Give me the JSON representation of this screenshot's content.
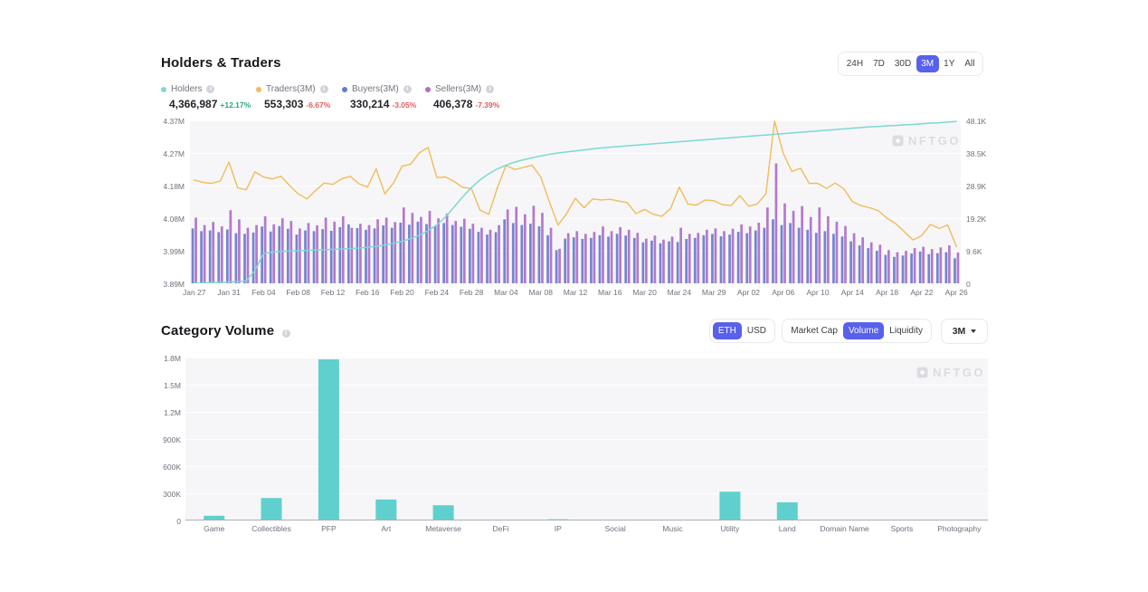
{
  "holders_traders": {
    "title": "Holders & Traders",
    "time_ranges": [
      "24H",
      "7D",
      "30D",
      "3M",
      "1Y",
      "All"
    ],
    "selected_range": "3M",
    "legend": [
      {
        "name": "Holders",
        "value": "4,366,987",
        "change": "+12.17%",
        "direction": "up",
        "color": "#7cd9d2"
      },
      {
        "name": "Traders(3M)",
        "value": "553,303",
        "change": "-6.67%",
        "direction": "down",
        "color": "#f0bc5a"
      },
      {
        "name": "Buyers(3M)",
        "value": "330,214",
        "change": "-3.05%",
        "direction": "down",
        "color": "#5c7fd0"
      },
      {
        "name": "Sellers(3M)",
        "value": "406,378",
        "change": "-7.39%",
        "direction": "down",
        "color": "#b46cc8"
      }
    ],
    "watermark": "NFTGO"
  },
  "category_volume": {
    "title": "Category Volume",
    "currency_options": [
      "ETH",
      "USD"
    ],
    "selected_currency": "ETH",
    "metric_options": [
      "Market Cap",
      "Volume",
      "Liquidity"
    ],
    "selected_metric": "Volume",
    "period": "3M",
    "watermark": "NFTGO"
  },
  "chart_data": [
    {
      "type": "composite",
      "title": "Holders & Traders",
      "x_tick_labels": [
        "Jan 27",
        "Jan 31",
        "Feb 04",
        "Feb 08",
        "Feb 12",
        "Feb 16",
        "Feb 20",
        "Feb 24",
        "Feb 28",
        "Mar 04",
        "Mar 08",
        "Mar 12",
        "Mar 16",
        "Mar 20",
        "Mar 24",
        "Mar 29",
        "Apr 02",
        "Apr 06",
        "Apr 10",
        "Apr 14",
        "Apr 18",
        "Apr 22",
        "Apr 26"
      ],
      "points_per_tick": 4,
      "left_axis": {
        "label": "Holders",
        "ticks": [
          "4.37M",
          "4.27M",
          "4.18M",
          "4.08M",
          "3.99M",
          "3.89M"
        ],
        "min": 3890000,
        "max": 4370000
      },
      "right_axis": {
        "label": "Traders/Buyers/Sellers",
        "ticks": [
          "48.1K",
          "38.5K",
          "28.9K",
          "19.2K",
          "9.6K",
          "0"
        ],
        "min": 0,
        "max": 48100
      },
      "series": [
        {
          "name": "Holders",
          "type": "line",
          "axis": "left",
          "color": "#7cd9d2",
          "values_millions": [
            3.89,
            3.891,
            3.892,
            3.893,
            3.894,
            3.895,
            3.897,
            3.928,
            3.978,
            3.982,
            3.984,
            3.985,
            3.986,
            3.987,
            3.988,
            3.989,
            3.99,
            3.991,
            3.992,
            3.994,
            3.996,
            3.999,
            4.003,
            4.008,
            4.014,
            4.022,
            4.032,
            4.045,
            4.062,
            4.085,
            4.115,
            4.145,
            4.172,
            4.195,
            4.213,
            4.227,
            4.238,
            4.247,
            4.254,
            4.26,
            4.265,
            4.27,
            4.274,
            4.277,
            4.28,
            4.283,
            4.286,
            4.289,
            4.291,
            4.293,
            4.295,
            4.297,
            4.299,
            4.301,
            4.303,
            4.305,
            4.307,
            4.309,
            4.311,
            4.313,
            4.315,
            4.317,
            4.319,
            4.321,
            4.323,
            4.325,
            4.327,
            4.329,
            4.331,
            4.333,
            4.335,
            4.337,
            4.339,
            4.341,
            4.343,
            4.345,
            4.347,
            4.349,
            4.351,
            4.352,
            4.354,
            4.355,
            4.357,
            4.358,
            4.36,
            4.362,
            4.363,
            4.365,
            4.367
          ]
        },
        {
          "name": "Traders(3M)",
          "type": "line",
          "axis": "right",
          "color": "#f0bc5a",
          "values_thousands": [
            30.5,
            29.8,
            29.5,
            30.2,
            35.8,
            28.2,
            27.6,
            32.9,
            31.4,
            30.8,
            31.6,
            28.9,
            26.4,
            24.9,
            27.4,
            29.6,
            29.2,
            30.8,
            31.6,
            29.4,
            28.4,
            33.8,
            26.4,
            29.6,
            34.6,
            35.2,
            38.6,
            40.1,
            31.2,
            31.4,
            30.1,
            28.3,
            28.0,
            21.6,
            20.4,
            28.2,
            34.8,
            33.6,
            34.2,
            34.9,
            31.4,
            24.1,
            17.2,
            20.6,
            25.1,
            22.3,
            24.9,
            24.6,
            24.8,
            24.3,
            23.8,
            20.6,
            21.8,
            20.4,
            19.8,
            22.1,
            28.4,
            23.4,
            23.1,
            24.6,
            24.4,
            23.2,
            23.0,
            25.9,
            22.8,
            23.4,
            26.4,
            47.9,
            38.4,
            33.0,
            34.0,
            29.5,
            29.5,
            28.0,
            29.6,
            27.9,
            24.1,
            22.9,
            22.3,
            21.4,
            19.2,
            17.6,
            15.2,
            12.8,
            14.1,
            17.4,
            16.2,
            17.2,
            10.9
          ]
        },
        {
          "name": "Buyers(3M)",
          "type": "bar",
          "axis": "right",
          "color": "#7285cf",
          "values_thousands": [
            16.2,
            15.4,
            15.6,
            15.1,
            15.9,
            14.8,
            14.6,
            15.0,
            16.8,
            15.3,
            16.9,
            16.1,
            14.4,
            15.6,
            15.4,
            16.0,
            15.5,
            16.6,
            17.4,
            16.3,
            15.8,
            16.2,
            17.1,
            16.4,
            17.9,
            17.3,
            18.2,
            17.5,
            17.0,
            17.8,
            17.2,
            16.7,
            16.1,
            15.2,
            14.4,
            15.1,
            18.9,
            17.8,
            17.2,
            17.6,
            16.8,
            14.2,
            9.8,
            13.2,
            13.6,
            13.1,
            13.4,
            14.2,
            13.8,
            14.6,
            14.1,
            13.4,
            12.1,
            12.6,
            11.8,
            12.4,
            12.2,
            13.1,
            13.4,
            14.2,
            14.6,
            13.9,
            14.4,
            15.2,
            14.8,
            15.6,
            16.4,
            18.9,
            17.2,
            17.8,
            16.4,
            15.8,
            14.9,
            15.4,
            14.6,
            13.8,
            12.4,
            11.2,
            10.4,
            9.6,
            8.4,
            7.8,
            8.2,
            8.8,
            9.4,
            8.6,
            8.9,
            9.2,
            7.4
          ]
        },
        {
          "name": "Sellers(3M)",
          "type": "bar",
          "axis": "right",
          "color": "#b478cc",
          "values_thousands": [
            19.4,
            17.2,
            18.1,
            16.8,
            21.6,
            18.9,
            16.4,
            17.2,
            19.8,
            17.4,
            19.2,
            18.4,
            16.2,
            17.8,
            17.1,
            19.4,
            18.2,
            19.8,
            16.4,
            17.6,
            17.2,
            18.9,
            19.4,
            18.1,
            22.4,
            20.8,
            19.6,
            21.4,
            19.2,
            20.6,
            18.4,
            19.1,
            17.6,
            16.4,
            15.8,
            17.2,
            21.8,
            22.6,
            20.4,
            22.9,
            20.8,
            16.4,
            10.2,
            14.8,
            15.4,
            14.6,
            15.2,
            16.8,
            15.4,
            16.6,
            15.8,
            14.9,
            13.2,
            14.1,
            12.9,
            13.8,
            16.4,
            14.6,
            14.9,
            15.8,
            16.2,
            15.4,
            16.1,
            17.4,
            16.8,
            17.9,
            22.4,
            35.4,
            23.6,
            21.4,
            22.8,
            19.6,
            22.4,
            19.8,
            18.2,
            16.9,
            14.8,
            13.6,
            12.1,
            11.4,
            9.8,
            9.2,
            9.6,
            10.4,
            10.8,
            10.1,
            10.6,
            11.2,
            9.1
          ]
        }
      ]
    },
    {
      "type": "bar",
      "title": "Category Volume",
      "categories": [
        "Game",
        "Collectibles",
        "PFP",
        "Art",
        "Metaverse",
        "DeFi",
        "IP",
        "Social",
        "Music",
        "Utility",
        "Land",
        "Domain Name",
        "Sports",
        "Photography"
      ],
      "values": [
        52000,
        248000,
        1780000,
        232000,
        168000,
        3000,
        14000,
        2000,
        1500,
        318000,
        201000,
        7000,
        2500,
        3500
      ],
      "yticks": [
        "1.8M",
        "1.5M",
        "1.2M",
        "900K",
        "600K",
        "300K",
        "0"
      ],
      "ylim": [
        0,
        1800000
      ],
      "color": "#5fd0cd"
    }
  ],
  "colors": {
    "accent": "#5761ec",
    "positive": "#27a583",
    "negative": "#e05d5d",
    "panel_bg": "#f6f6f8",
    "holders": "#7cd9d2",
    "traders": "#f0bc5a",
    "buyers": "#7285cf",
    "sellers": "#b478cc",
    "category_bar": "#5fd0cd"
  }
}
